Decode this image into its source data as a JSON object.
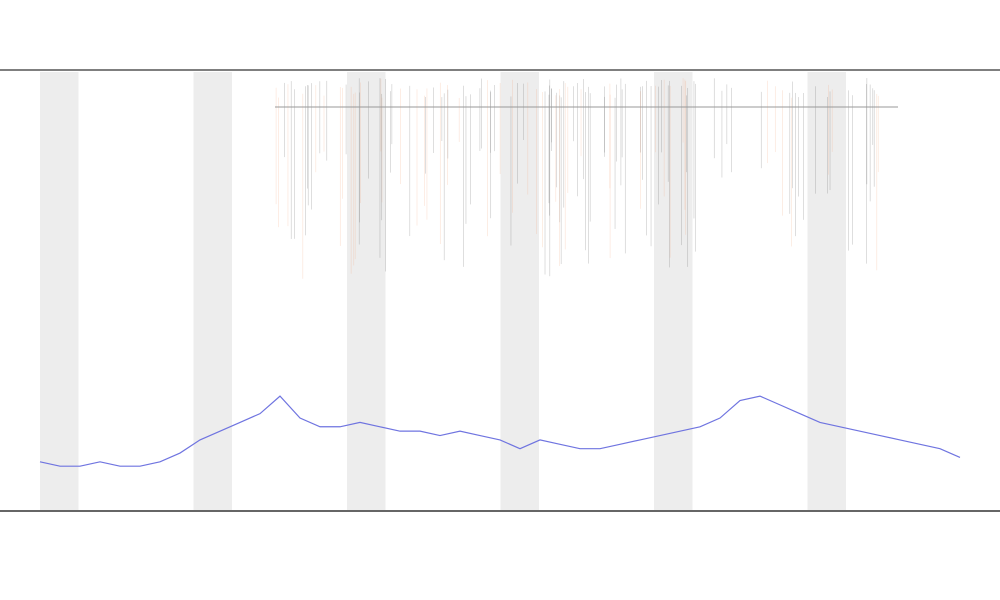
{
  "chart_data": {
    "type": "line",
    "x": [
      0,
      1,
      2,
      3,
      4,
      5,
      6,
      7,
      8,
      9,
      10,
      11,
      12,
      13,
      14,
      15,
      16,
      17,
      18,
      19,
      20,
      21,
      22,
      23,
      24,
      25,
      26,
      27,
      28,
      29,
      30,
      31,
      32,
      33,
      34,
      35,
      36,
      37,
      38,
      39,
      40,
      41,
      42,
      43,
      44,
      45,
      46
    ],
    "xlim": [
      0,
      46
    ],
    "ylim": [
      0,
      100
    ],
    "series": [
      {
        "color": "#6f74e0",
        "values": [
          11,
          10,
          10,
          11,
          10,
          10,
          11,
          13,
          16,
          18,
          20,
          22,
          26,
          21,
          19,
          19,
          20,
          19,
          18,
          18,
          17,
          18,
          17,
          16,
          14,
          16,
          15,
          14,
          14,
          15,
          16,
          17,
          18,
          19,
          21,
          25,
          26,
          24,
          22,
          20,
          19,
          18,
          17,
          16,
          15,
          14,
          12
        ]
      }
    ]
  }
}
